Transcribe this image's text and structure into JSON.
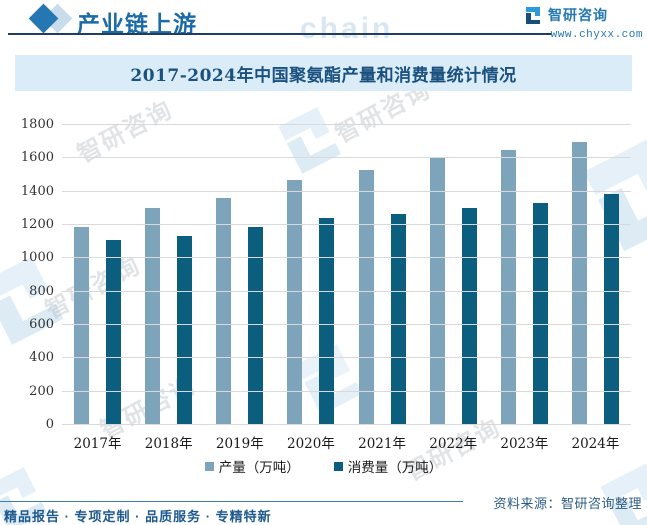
{
  "header": {
    "title": "产业链上游",
    "brand_name": "智研咨询",
    "website": "www.chyxx.com"
  },
  "chart_data": {
    "type": "bar",
    "title": "2017-2024年中国聚氨酯产量和消费量统计情况",
    "categories": [
      "2017年",
      "2018年",
      "2019年",
      "2020年",
      "2021年",
      "2022年",
      "2023年",
      "2024年"
    ],
    "series": [
      {
        "name": "产量（万吨）",
        "color": "#7DA4BA",
        "values": [
          1190,
          1305,
          1365,
          1470,
          1530,
          1600,
          1650,
          1700
        ]
      },
      {
        "name": "消费量（万吨）",
        "color": "#0C5E7E",
        "values": [
          1110,
          1135,
          1190,
          1240,
          1265,
          1300,
          1335,
          1385
        ]
      }
    ],
    "ylim": [
      0,
      1800
    ],
    "ytick_step": 200,
    "grid": true,
    "legend_position": "bottom"
  },
  "source": {
    "label": "资料来源：智研咨询整理"
  },
  "footer": {
    "tagline": "精品报告 · 专项定制 · 品质服务 · 专精特新"
  },
  "watermark": {
    "text": "智研咨询",
    "chain": "chain"
  },
  "colors": {
    "accent_blue": "#2577B2",
    "banner_bg": "#D9ECF7",
    "title_text": "#1B5180",
    "gridline": "#D9D9D9"
  }
}
